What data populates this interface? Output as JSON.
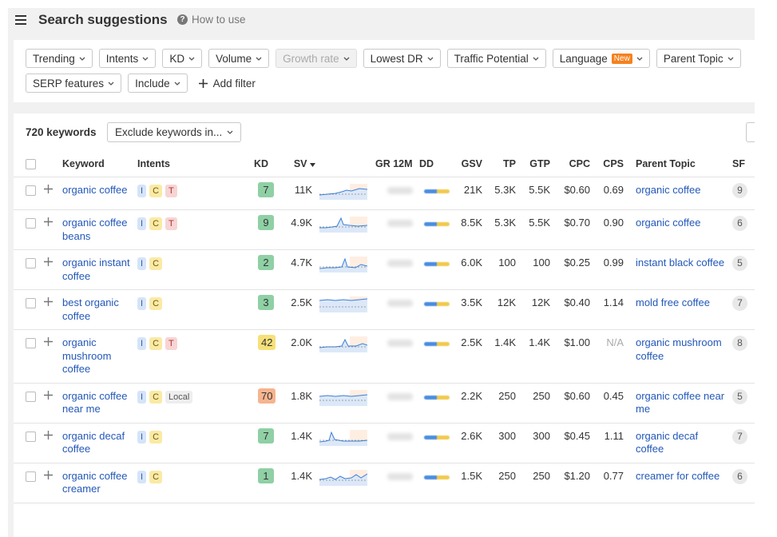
{
  "header": {
    "title": "Search suggestions",
    "help": "How to use"
  },
  "filters": {
    "row1": [
      {
        "label": "Trending"
      },
      {
        "label": "Intents"
      },
      {
        "label": "KD"
      },
      {
        "label": "Volume"
      },
      {
        "label": "Growth rate",
        "disabled": true
      },
      {
        "label": "Lowest DR"
      },
      {
        "label": "Traffic Potential"
      },
      {
        "label": "Language",
        "badge": "New"
      },
      {
        "label": "Parent Topic"
      }
    ],
    "row2": [
      {
        "label": "SERP features"
      },
      {
        "label": "Include"
      }
    ],
    "add_filter": "Add filter"
  },
  "table": {
    "count": "720 keywords",
    "exclude": "Exclude keywords in...",
    "columns": [
      "Keyword",
      "Intents",
      "KD",
      "SV",
      "GR 12M",
      "DD",
      "GSV",
      "TP",
      "GTP",
      "CPC",
      "CPS",
      "Parent Topic",
      "SF"
    ],
    "rows": [
      {
        "keyword": "organic coffee",
        "intents": [
          "I",
          "C",
          "T"
        ],
        "kd": 7,
        "sv": "11K",
        "gsv": "21K",
        "tp": "5.3K",
        "gtp": "5.5K",
        "cpc": "$0.60",
        "cps": "0.69",
        "parent": "organic coffee",
        "sf": 9
      },
      {
        "keyword": "organic coffee beans",
        "intents": [
          "I",
          "C",
          "T"
        ],
        "kd": 9,
        "sv": "4.9K",
        "gsv": "8.5K",
        "tp": "5.3K",
        "gtp": "5.5K",
        "cpc": "$0.70",
        "cps": "0.90",
        "parent": "organic coffee",
        "sf": 6
      },
      {
        "keyword": "organic instant coffee",
        "intents": [
          "I",
          "C"
        ],
        "kd": 2,
        "sv": "4.7K",
        "gsv": "6.0K",
        "tp": "100",
        "gtp": "100",
        "cpc": "$0.25",
        "cps": "0.99",
        "parent": "instant black coffee",
        "sf": 5
      },
      {
        "keyword": "best organic coffee",
        "intents": [
          "I",
          "C"
        ],
        "kd": 3,
        "sv": "2.5K",
        "gsv": "3.5K",
        "tp": "12K",
        "gtp": "12K",
        "cpc": "$0.40",
        "cps": "1.14",
        "parent": "mold free coffee",
        "sf": 7
      },
      {
        "keyword": "organic mushroom coffee",
        "intents": [
          "I",
          "C",
          "T"
        ],
        "kd": 42,
        "sv": "2.0K",
        "gsv": "2.5K",
        "tp": "1.4K",
        "gtp": "1.4K",
        "cpc": "$1.00",
        "cps": "N/A",
        "parent": "organic mushroom coffee",
        "sf": 8
      },
      {
        "keyword": "organic coffee near me",
        "intents": [
          "I",
          "C",
          "Local"
        ],
        "kd": 70,
        "sv": "1.8K",
        "gsv": "2.2K",
        "tp": "250",
        "gtp": "250",
        "cpc": "$0.60",
        "cps": "0.45",
        "parent": "organic coffee near me",
        "sf": 5
      },
      {
        "keyword": "organic decaf coffee",
        "intents": [
          "I",
          "C"
        ],
        "kd": 7,
        "sv": "1.4K",
        "gsv": "2.6K",
        "tp": "300",
        "gtp": "300",
        "cpc": "$0.45",
        "cps": "1.11",
        "parent": "organic decaf coffee",
        "sf": 7
      },
      {
        "keyword": "organic coffee creamer",
        "intents": [
          "I",
          "C"
        ],
        "kd": 1,
        "sv": "1.4K",
        "gsv": "1.5K",
        "tp": "250",
        "gtp": "250",
        "cpc": "$1.20",
        "cps": "0.77",
        "parent": "creamer for coffee",
        "sf": 6
      }
    ]
  }
}
